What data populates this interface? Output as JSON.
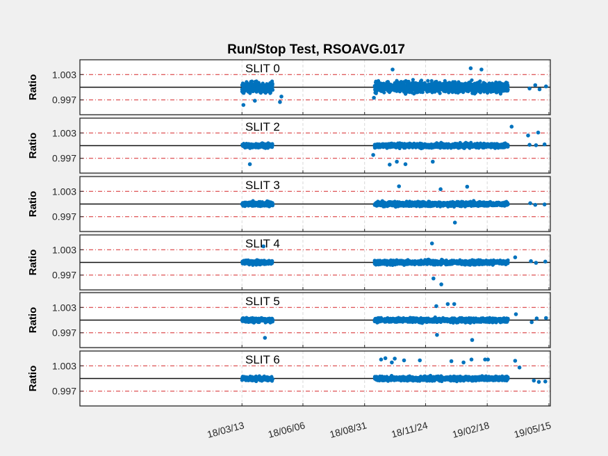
{
  "chart_data": {
    "type": "scatter",
    "title": "Run/Stop Test, RSOAVG.017",
    "ylabel": "Ratio",
    "xlabel": "",
    "ylim": [
      0.9935,
      1.0065
    ],
    "reference_lines": [
      1.003,
      0.997
    ],
    "center_line": 1.0,
    "grid": true,
    "x_ticks": [
      {
        "label": "18/03/13",
        "day": 71
      },
      {
        "label": "18/06/06",
        "day": 156
      },
      {
        "label": "18/08/31",
        "day": 242
      },
      {
        "label": "18/11/24",
        "day": 327
      },
      {
        "label": "19/02/18",
        "day": 413
      },
      {
        "label": "19/05/15",
        "day": 499
      }
    ],
    "xlim_days": [
      -155,
      501
    ],
    "x_units": "days since 2018-01-01",
    "y_ticks": [
      {
        "label": "1.003",
        "value": 1.003
      },
      {
        "label": "0.997",
        "value": 0.997
      }
    ],
    "series_color": "#0072bd",
    "panels": [
      {
        "label": "SLIT 0",
        "spread": 0.0011,
        "dense_ymin": 0.9975,
        "dense_ymax": 1.0025,
        "outliers": [
          [
            73,
            0.9958
          ],
          [
            89,
            0.9968
          ],
          [
            124,
            0.9965
          ],
          [
            126,
            0.9978
          ],
          [
            255,
            0.9975
          ],
          [
            281,
            1.0042
          ],
          [
            405,
            1.0042
          ],
          [
            390,
            1.0045
          ],
          [
            472,
            0.9997
          ],
          [
            480,
            1.0005
          ],
          [
            486,
            0.9995
          ],
          [
            495,
            1.0002
          ]
        ]
      },
      {
        "label": "SLIT 2",
        "spread": 0.00045,
        "dense_ymin": 0.9984,
        "dense_ymax": 1.0016,
        "outliers": [
          [
            82,
            0.9956
          ],
          [
            254,
            0.9978
          ],
          [
            277,
            0.9955
          ],
          [
            287,
            0.9962
          ],
          [
            299,
            0.9956
          ],
          [
            337,
            0.9962
          ],
          [
            470,
            1.0024
          ],
          [
            447,
            1.0045
          ],
          [
            484,
            1.0031
          ],
          [
            472,
            1.0002
          ],
          [
            481,
            1.0001
          ],
          [
            493,
            1.0003
          ]
        ]
      },
      {
        "label": "SLIT 3",
        "spread": 0.00045,
        "dense_ymin": 0.9985,
        "dense_ymax": 1.0015,
        "outliers": [
          [
            290,
            1.0042
          ],
          [
            348,
            1.0035
          ],
          [
            385,
            1.0041
          ],
          [
            368,
            0.9956
          ],
          [
            408,
            1.0001
          ],
          [
            473,
            1.0002
          ],
          [
            480,
            0.9998
          ],
          [
            493,
            0.9999
          ]
        ]
      },
      {
        "label": "SLIT 4",
        "spread": 0.00045,
        "dense_ymin": 0.9985,
        "dense_ymax": 1.0015,
        "outliers": [
          [
            101,
            1.0038
          ],
          [
            336,
            1.0045
          ],
          [
            349,
            0.9948
          ],
          [
            338,
            0.9962
          ],
          [
            452,
            1.0012
          ],
          [
            474,
            1.0003
          ],
          [
            481,
            0.9999
          ],
          [
            494,
            1.0002
          ]
        ]
      },
      {
        "label": "SLIT 5",
        "spread": 0.00045,
        "dense_ymin": 0.9985,
        "dense_ymax": 1.0015,
        "outliers": [
          [
            103,
            0.9958
          ],
          [
            342,
            1.0033
          ],
          [
            358,
            1.0038
          ],
          [
            367,
            1.0038
          ],
          [
            343,
            0.9965
          ],
          [
            392,
            0.9953
          ],
          [
            453,
            1.0014
          ],
          [
            475,
            0.9995
          ],
          [
            482,
            1.0004
          ],
          [
            495,
            1.0005
          ]
        ]
      },
      {
        "label": "SLIT 6",
        "spread": 0.00045,
        "dense_ymin": 0.9985,
        "dense_ymax": 1.0015,
        "outliers": [
          [
            265,
            1.0045
          ],
          [
            271,
            1.0048
          ],
          [
            280,
            1.0038
          ],
          [
            284,
            1.0047
          ],
          [
            297,
            1.0043
          ],
          [
            319,
            1.0043
          ],
          [
            363,
            1.0041
          ],
          [
            380,
            1.0038
          ],
          [
            391,
            1.0045
          ],
          [
            410,
            1.0045
          ],
          [
            414,
            1.0045
          ],
          [
            452,
            1.0042
          ],
          [
            458,
            1.0026
          ],
          [
            478,
            0.9995
          ],
          [
            485,
            0.9992
          ],
          [
            494,
            0.9993
          ]
        ]
      }
    ],
    "segments_days": [
      [
        71,
        114
      ],
      [
        256,
        442
      ]
    ]
  }
}
